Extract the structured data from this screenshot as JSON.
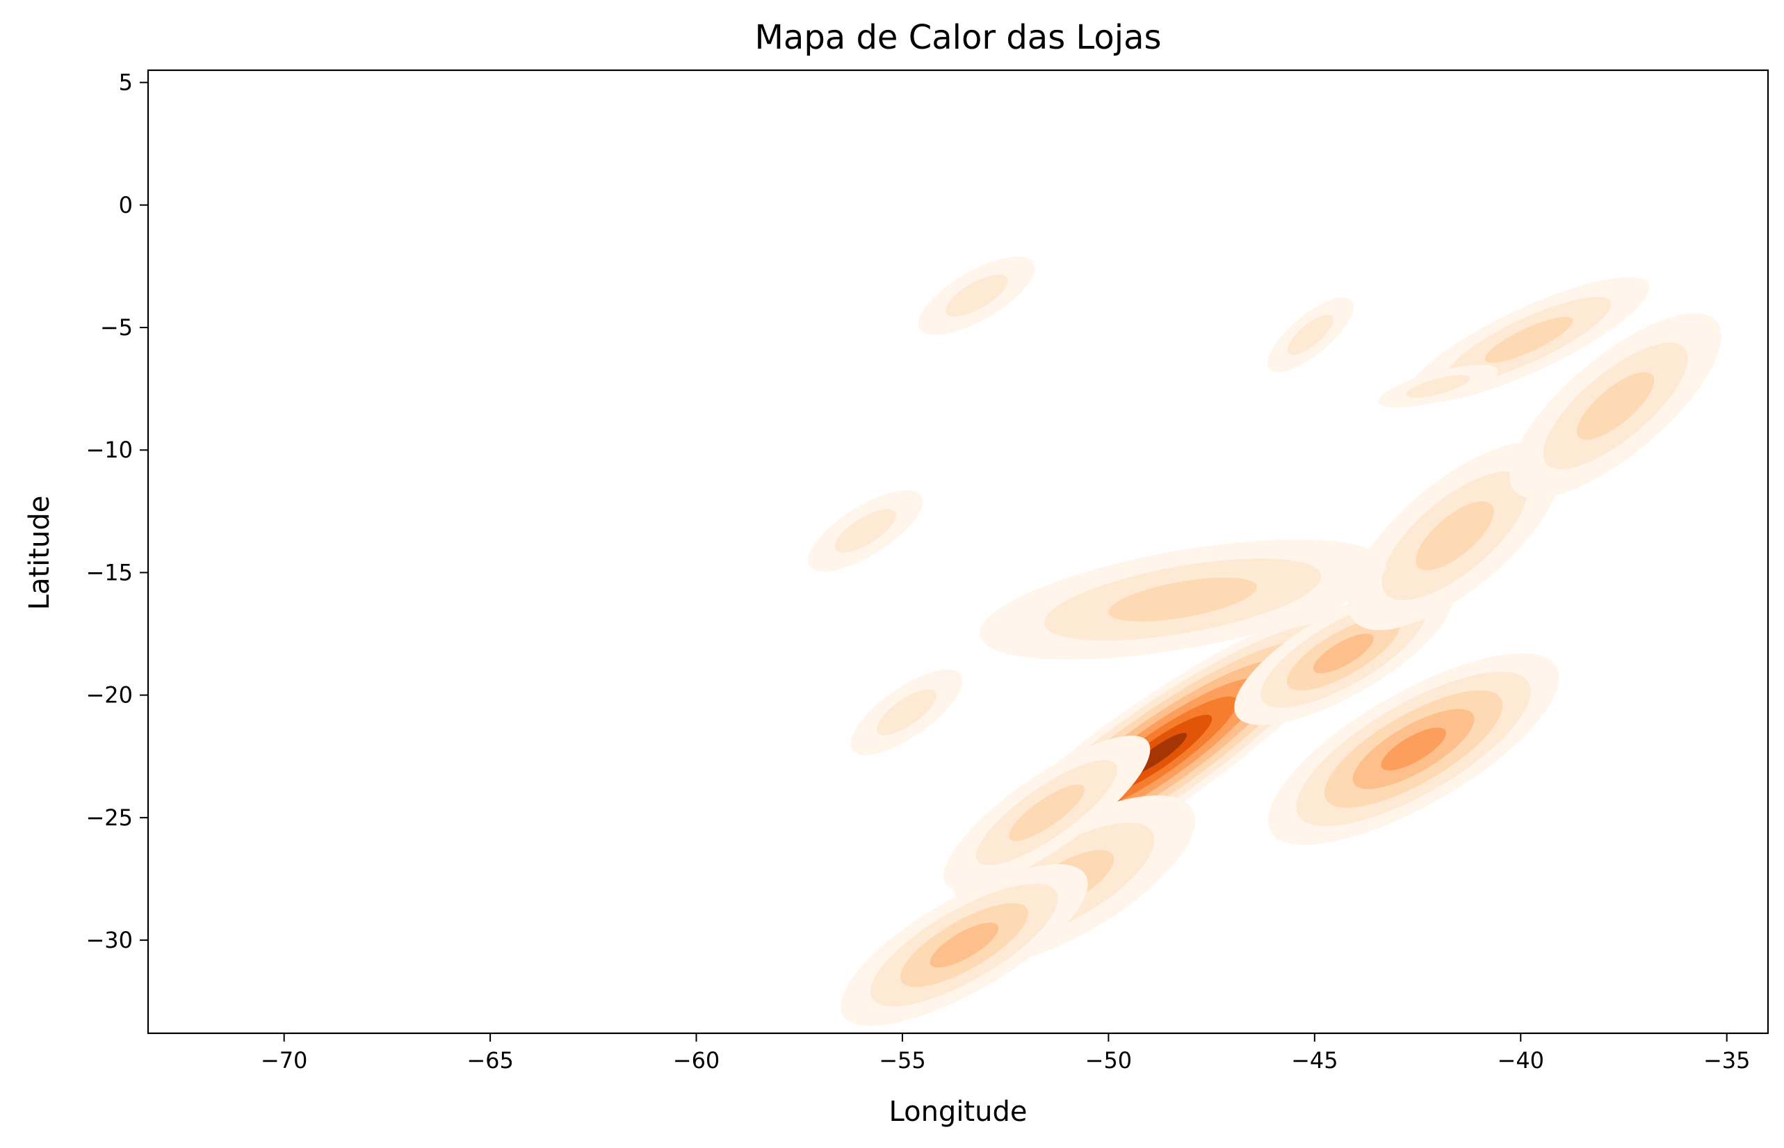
{
  "chart_data": {
    "type": "heatmap",
    "subtype": "kde-density-contour",
    "title": "Mapa de Calor das Lojas",
    "xlabel": "Longitude",
    "ylabel": "Latitude",
    "xlim": [
      -73.3,
      -34.0
    ],
    "ylim": [
      -33.8,
      5.5
    ],
    "xticks": [
      -70,
      -65,
      -60,
      -55,
      -50,
      -45,
      -40,
      -35
    ],
    "yticks": [
      5,
      0,
      -5,
      -10,
      -15,
      -20,
      -25,
      -30
    ],
    "xtick_labels": [
      "−70",
      "−65",
      "−60",
      "−55",
      "−50",
      "−45",
      "−40",
      "−35"
    ],
    "ytick_labels": [
      "5",
      "0",
      "−5",
      "−10",
      "−15",
      "−20",
      "−25",
      "−30"
    ],
    "colormap": "Oranges",
    "grid": false,
    "legend": false,
    "density_levels": [
      "#fff5eb",
      "#fee9d4",
      "#fdd9b4",
      "#fdc08c",
      "#fd9f5c",
      "#f67d2e",
      "#e25508",
      "#a53603"
    ],
    "clusters": [
      {
        "lon": -48.8,
        "lat": -22.4,
        "rx": 6.0,
        "ry": 2.2,
        "angle": 35,
        "peak_level": 7
      },
      {
        "lon": -44.3,
        "lat": -18.3,
        "rx": 3.0,
        "ry": 1.7,
        "angle": 30,
        "peak_level": 3
      },
      {
        "lon": -42.6,
        "lat": -22.2,
        "rx": 4.0,
        "ry": 2.3,
        "angle": 30,
        "peak_level": 4
      },
      {
        "lon": -41.6,
        "lat": -13.5,
        "rx": 3.2,
        "ry": 2.2,
        "angle": 40,
        "peak_level": 2
      },
      {
        "lon": -48.2,
        "lat": -16.1,
        "rx": 5.0,
        "ry": 2.0,
        "angle": 10,
        "peak_level": 2
      },
      {
        "lon": -51.0,
        "lat": -27.6,
        "rx": 3.5,
        "ry": 2.2,
        "angle": 30,
        "peak_level": 2
      },
      {
        "lon": -53.5,
        "lat": -30.2,
        "rx": 3.4,
        "ry": 1.9,
        "angle": 30,
        "peak_level": 3
      },
      {
        "lon": -51.5,
        "lat": -24.8,
        "rx": 3.0,
        "ry": 1.5,
        "angle": 35,
        "peak_level": 2
      },
      {
        "lon": -37.7,
        "lat": -8.2,
        "rx": 3.2,
        "ry": 2.0,
        "angle": 40,
        "peak_level": 2
      },
      {
        "lon": -39.8,
        "lat": -5.5,
        "rx": 3.2,
        "ry": 1.3,
        "angle": 25,
        "peak_level": 2
      },
      {
        "lon": -53.2,
        "lat": -3.7,
        "rx": 1.6,
        "ry": 1.0,
        "angle": 30,
        "peak_level": 1
      },
      {
        "lon": -45.1,
        "lat": -5.3,
        "rx": 1.3,
        "ry": 0.8,
        "angle": 40,
        "peak_level": 1
      },
      {
        "lon": -55.9,
        "lat": -13.3,
        "rx": 1.6,
        "ry": 1.0,
        "angle": 32,
        "peak_level": 1
      },
      {
        "lon": -54.9,
        "lat": -20.7,
        "rx": 1.6,
        "ry": 1.0,
        "angle": 35,
        "peak_level": 1
      },
      {
        "lon": -42.0,
        "lat": -7.4,
        "rx": 1.5,
        "ry": 0.6,
        "angle": 15,
        "peak_level": 1
      }
    ]
  }
}
